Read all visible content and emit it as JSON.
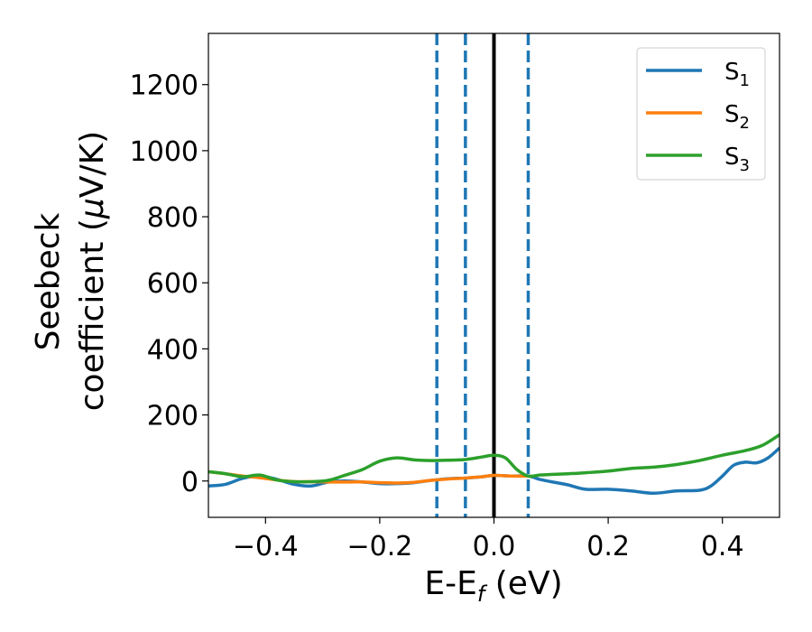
{
  "chart_data": {
    "type": "line",
    "xlabel": "E-E_f (eV)",
    "xlabel_parts": {
      "main": "E-E",
      "sub": "f",
      "unit": " (eV)"
    },
    "ylabel_line1": "Seebeck",
    "ylabel_line2_prefix": "coefficient  (",
    "ylabel_mu": "μ",
    "ylabel_line2_suffix": "V/K)",
    "xlim": [
      -0.5,
      0.5
    ],
    "ylim": [
      -110,
      1355
    ],
    "xticks": [
      -0.4,
      -0.2,
      0.0,
      0.2,
      0.4
    ],
    "xtick_labels": [
      "−0.4",
      "−0.2",
      "0.0",
      "0.2",
      "0.4"
    ],
    "yticks": [
      0,
      200,
      400,
      600,
      800,
      1000,
      1200
    ],
    "ytick_labels": [
      "0",
      "200",
      "400",
      "600",
      "800",
      "1000",
      "1200"
    ],
    "grid": false,
    "legend_position": "top-right",
    "vlines": [
      {
        "x": -0.1,
        "style": "dashed",
        "color": "#1f77b4"
      },
      {
        "x": -0.05,
        "style": "dashed",
        "color": "#1f77b4"
      },
      {
        "x": 0.0,
        "style": "solid",
        "color": "#000000"
      },
      {
        "x": 0.06,
        "style": "dashed",
        "color": "#1f77b4"
      }
    ],
    "series": [
      {
        "name": "S_1",
        "label_main": "S",
        "label_sub": "1",
        "color": "#1f77b4",
        "x": [
          -0.5,
          -0.47,
          -0.44,
          -0.41,
          -0.38,
          -0.35,
          -0.32,
          -0.29,
          -0.26,
          -0.23,
          -0.2,
          -0.17,
          -0.14,
          -0.11,
          -0.08,
          -0.05,
          -0.02,
          0.0,
          0.03,
          0.06,
          0.08,
          0.1,
          0.13,
          0.16,
          0.2,
          0.24,
          0.28,
          0.32,
          0.36,
          0.38,
          0.4,
          0.42,
          0.44,
          0.46,
          0.48,
          0.5
        ],
        "y": [
          -15,
          -10,
          8,
          15,
          5,
          -10,
          -15,
          -3,
          0,
          -3,
          -8,
          -8,
          -5,
          2,
          7,
          9,
          13,
          17,
          15,
          15,
          5,
          -2,
          -12,
          -25,
          -25,
          -30,
          -37,
          -30,
          -28,
          -15,
          15,
          48,
          57,
          55,
          70,
          100
        ]
      },
      {
        "name": "S_2",
        "label_main": "S",
        "label_sub": "2",
        "color": "#ff7f0e",
        "x": [
          -0.5,
          -0.47,
          -0.44,
          -0.41,
          -0.38,
          -0.35,
          -0.32,
          -0.29,
          -0.26,
          -0.23,
          -0.2,
          -0.17,
          -0.14,
          -0.11,
          -0.08,
          -0.05,
          -0.02,
          0.0,
          0.03,
          0.06
        ],
        "y": [
          28,
          22,
          15,
          10,
          3,
          -2,
          -2,
          -3,
          -3,
          -3,
          -5,
          -6,
          -4,
          2,
          6,
          9,
          13,
          17,
          15,
          15
        ]
      },
      {
        "name": "S_3",
        "label_main": "S",
        "label_sub": "3",
        "color": "#2ca02c",
        "x": [
          -0.5,
          -0.47,
          -0.44,
          -0.41,
          -0.38,
          -0.35,
          -0.32,
          -0.29,
          -0.26,
          -0.23,
          -0.2,
          -0.17,
          -0.14,
          -0.11,
          -0.08,
          -0.05,
          -0.02,
          0.0,
          0.02,
          0.04,
          0.06,
          0.08,
          0.1,
          0.13,
          0.16,
          0.2,
          0.24,
          0.28,
          0.32,
          0.36,
          0.4,
          0.44,
          0.47,
          0.5
        ],
        "y": [
          28,
          22,
          13,
          18,
          3,
          -2,
          -2,
          2,
          18,
          35,
          60,
          70,
          64,
          62,
          63,
          65,
          73,
          78,
          70,
          35,
          15,
          18,
          20,
          22,
          25,
          30,
          38,
          42,
          50,
          62,
          78,
          92,
          108,
          140
        ]
      }
    ]
  }
}
